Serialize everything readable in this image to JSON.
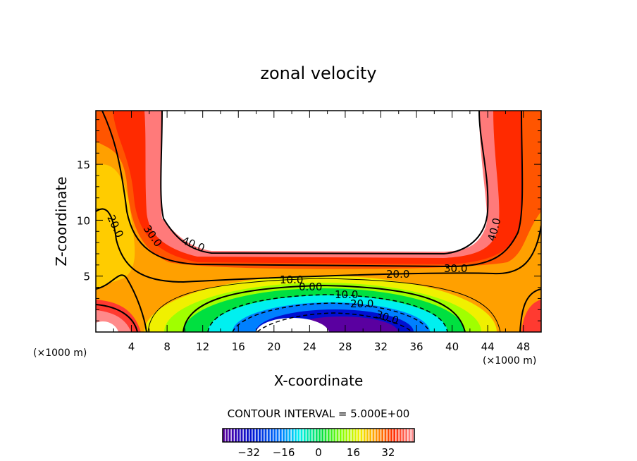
{
  "chart_data": {
    "type": "contour",
    "title": "zonal velocity",
    "xlabel": "X-coordinate",
    "ylabel": "Z-coordinate",
    "x_unit_left": "(×1000 m)",
    "x_unit_right": "(×1000 m)",
    "xlim": [
      0,
      50
    ],
    "ylim": [
      0,
      19.8
    ],
    "x_ticks": [
      "4",
      "8",
      "12",
      "16",
      "20",
      "24",
      "28",
      "32",
      "36",
      "40",
      "44",
      "48"
    ],
    "x_tick_values": [
      4,
      8,
      12,
      16,
      20,
      24,
      28,
      32,
      36,
      40,
      44,
      48
    ],
    "y_ticks": [
      "5",
      "10",
      "15"
    ],
    "y_tick_values": [
      5,
      10,
      15
    ],
    "contour_interval_text": "CONTOUR INTERVAL = 5.000E+00",
    "contour_interval": 5,
    "contour_labels": [
      "20.0",
      "30.0",
      "40.0",
      "40.0",
      "30.0",
      "20.0",
      "10.0",
      "0.00",
      "10.0",
      "20.0",
      "30.0"
    ],
    "colorbar": {
      "range": [
        -44,
        44
      ],
      "ticks": [
        "−32",
        "−16",
        "0",
        "16",
        "32"
      ],
      "tick_values": [
        -32,
        -16,
        0,
        16,
        32
      ]
    },
    "colors": {
      "purple": "#5a00a0",
      "darkblue": "#0010d0",
      "blue": "#0070ff",
      "cyan": "#00f0f0",
      "green": "#00e040",
      "lime": "#80ff00",
      "yellow": "#f0f000",
      "orange": "#ffa000",
      "red": "#ff2a00",
      "pink": "#ff7a7a"
    }
  }
}
